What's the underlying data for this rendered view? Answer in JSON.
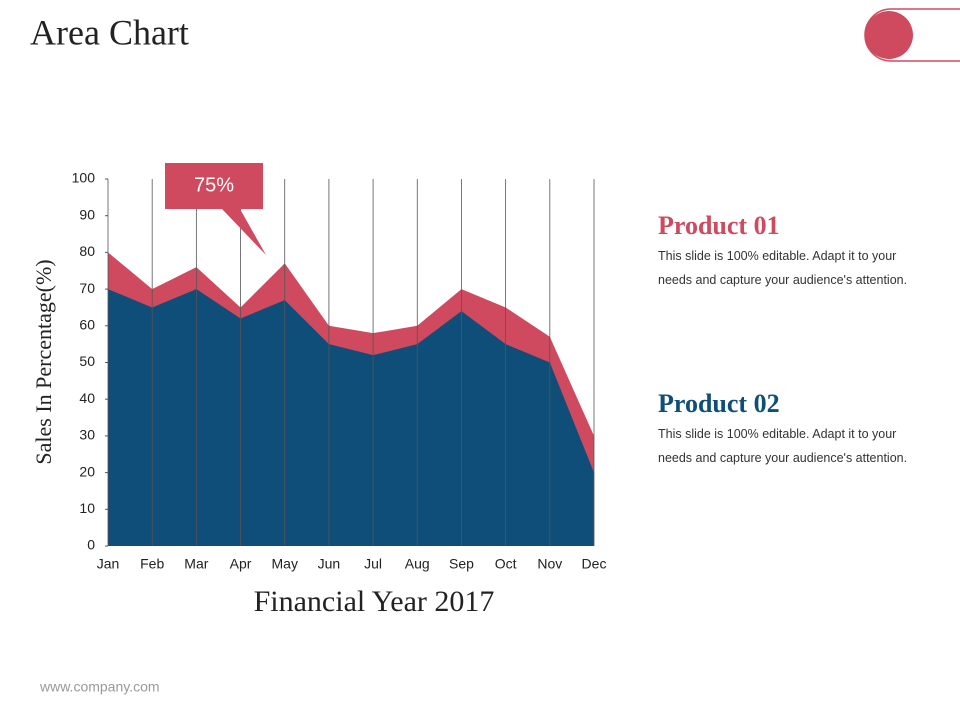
{
  "title": "Area Chart",
  "footer": "www.company.com",
  "chart_data": {
    "type": "area",
    "categories": [
      "Jan",
      "Feb",
      "Mar",
      "Apr",
      "May",
      "Jun",
      "Jul",
      "Aug",
      "Sep",
      "Oct",
      "Nov",
      "Dec"
    ],
    "series": [
      {
        "name": "Product 01",
        "color": "#cf4a5e",
        "values": [
          80,
          70,
          76,
          65,
          77,
          60,
          58,
          60,
          70,
          65,
          57,
          30
        ],
        "description": "This slide is 100% editable. Adapt it to your needs and capture your audience's attention."
      },
      {
        "name": "Product 02",
        "color": "#0e4e78",
        "values": [
          70,
          65,
          70,
          62,
          67,
          55,
          52,
          55,
          64,
          55,
          50,
          20
        ],
        "description": "This slide is 100% editable. Adapt it to your needs and capture your audience's attention."
      }
    ],
    "ylim": [
      0,
      100
    ],
    "yticks": [
      0,
      10,
      20,
      30,
      40,
      50,
      60,
      70,
      80,
      90,
      100
    ],
    "ylabel": "Sales In Percentage(%)",
    "xlabel": "Financial Year 2017",
    "annotation": "75%",
    "grid": true
  }
}
